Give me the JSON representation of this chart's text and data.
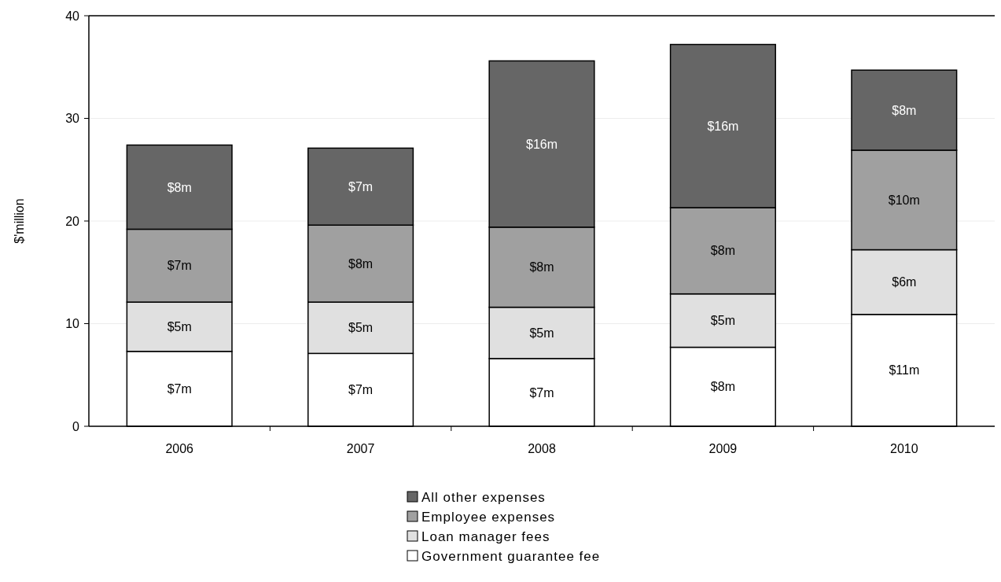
{
  "chart_data": {
    "type": "bar",
    "stacked": true,
    "ylabel": "$'million",
    "categories": [
      "2006",
      "2007",
      "2008",
      "2009",
      "2010"
    ],
    "series": [
      {
        "name": "Government guarantee fee",
        "color": "#ffffff",
        "values": [
          7.3,
          7.1,
          6.6,
          7.7,
          10.9
        ],
        "value_labels": [
          "$7m",
          "$7m",
          "$7m",
          "$8m",
          "$11m"
        ]
      },
      {
        "name": "Loan manager fees",
        "color": "#e0e0e0",
        "values": [
          4.8,
          5.0,
          5.0,
          5.2,
          6.3
        ],
        "value_labels": [
          "$5m",
          "$5m",
          "$5m",
          "$5m",
          "$6m"
        ]
      },
      {
        "name": "Employee expenses",
        "color": "#a0a0a0",
        "values": [
          7.1,
          7.5,
          7.8,
          8.4,
          9.7
        ],
        "value_labels": [
          "$7m",
          "$8m",
          "$8m",
          "$8m",
          "$10m"
        ]
      },
      {
        "name": "All other expenses",
        "color": "#666666",
        "values": [
          8.2,
          7.5,
          16.2,
          15.9,
          7.8
        ],
        "value_labels": [
          "$8m",
          "$7m",
          "$16m",
          "$16m",
          "$8m"
        ]
      }
    ],
    "ylim": [
      0,
      40
    ],
    "yticks": [
      0,
      10,
      20,
      30,
      40
    ],
    "grid": "y",
    "legend": "bottom"
  }
}
